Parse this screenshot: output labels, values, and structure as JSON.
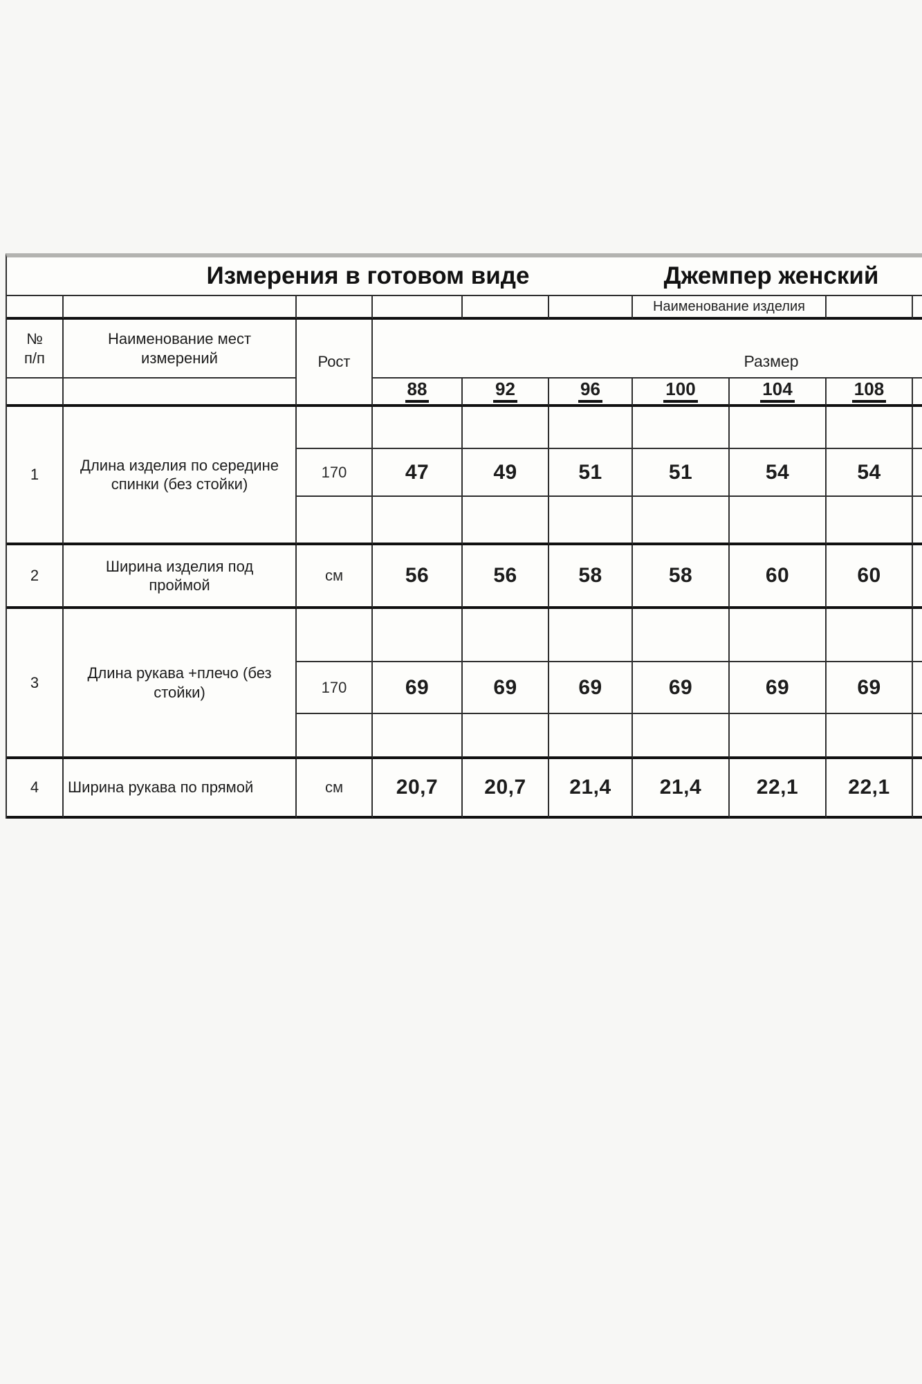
{
  "t": {
    "title1": "Измерения в готовом виде",
    "title2": "Джемпер  женский",
    "prod": "Наименование изделия",
    "h": {
      "num1": "№",
      "num2": "п/п",
      "name1": "Наименование мест",
      "name2": "измерений",
      "rost": "Рост",
      "size": "Размер"
    },
    "sizes": [
      "88",
      "92",
      "96",
      "100",
      "104",
      "108"
    ],
    "rows": [
      {
        "num": "1",
        "name": "Длина изделия по середине спинки (без стойки)",
        "h": "170",
        "v": [
          "47",
          "49",
          "51",
          "51",
          "54",
          "54"
        ]
      },
      {
        "num": "2",
        "name": "Ширина изделия под проймой",
        "h": "см",
        "v": [
          "56",
          "56",
          "58",
          "58",
          "60",
          "60"
        ]
      },
      {
        "num": "3",
        "name": "Длина рукава +плечо (без стойки)",
        "h": "170",
        "v": [
          "69",
          "69",
          "69",
          "69",
          "69",
          "69"
        ]
      },
      {
        "num": "4",
        "name": "Ширина рукава по прямой",
        "h": "см",
        "v": [
          "20,7",
          "20,7",
          "21,4",
          "21,4",
          "22,1",
          "22,1"
        ]
      }
    ],
    "colors": {
      "thin_border": "#2e2e2e",
      "thick_border": "#101010",
      "top_strip": "#b3b3b0",
      "cell_bg": "#fdfdfb",
      "page_bg": "#f7f7f5",
      "text": "#1c1c1c"
    }
  }
}
